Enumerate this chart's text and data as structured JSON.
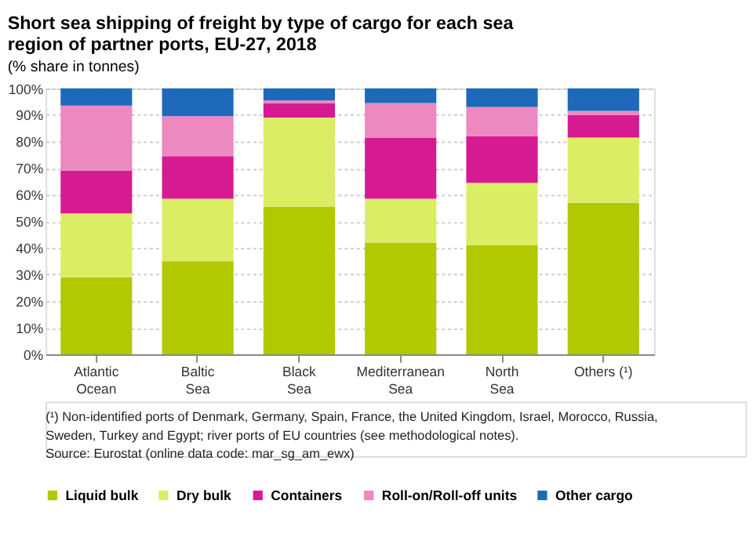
{
  "chart_data": {
    "type": "bar",
    "stacked": true,
    "title": "Short sea shipping of freight by type of cargo for each sea region of partner ports, EU-27, 2018",
    "subtitle": "(% share in tonnes)",
    "categories": [
      "Atlantic Ocean",
      "Baltic Sea",
      "Black Sea",
      "Mediterranean Sea",
      "North Sea",
      "Others (¹)"
    ],
    "series": [
      {
        "name": "Liquid bulk",
        "color": "#b2c800",
        "values": [
          29,
          35,
          55.5,
          42,
          41,
          57
        ]
      },
      {
        "name": "Dry bulk",
        "color": "#dbed63",
        "values": [
          24,
          23.5,
          33.5,
          16.5,
          23.5,
          24.5
        ]
      },
      {
        "name": "Containers",
        "color": "#d61a92",
        "values": [
          16,
          16,
          5.5,
          23,
          17.5,
          8.5
        ]
      },
      {
        "name": "Roll-on/Roll-off units",
        "color": "#eb89c0",
        "values": [
          24.5,
          15,
          1,
          13,
          11,
          1.5
        ]
      },
      {
        "name": "Other cargo",
        "color": "#1e69b9",
        "values": [
          6.5,
          10.5,
          4.5,
          5.5,
          7,
          8.5
        ]
      }
    ],
    "ylim": [
      0,
      100
    ],
    "yticks": [
      {
        "value": 0,
        "label": "0%"
      },
      {
        "value": 10,
        "label": "10%"
      },
      {
        "value": 20,
        "label": "20%"
      },
      {
        "value": 30,
        "label": "30%"
      },
      {
        "value": 40,
        "label": "40%"
      },
      {
        "value": 50,
        "label": "50%"
      },
      {
        "value": 60,
        "label": "60%"
      },
      {
        "value": 70,
        "label": "70%"
      },
      {
        "value": 80,
        "label": "80%"
      },
      {
        "value": 90,
        "label": "90%"
      },
      {
        "value": 100,
        "label": "100%"
      }
    ],
    "grid": "y",
    "legend": "bottom",
    "annotations": [
      "(¹) Non-identified ports of Denmark, Germany, Spain, France, the United Kingdom, Israel, Morocco, Russia, Sweden, Turkey and Egypt; river ports of EU countries (see methodological notes).",
      "Source: Eurostat (online data code: mar_sg_am_ewx)"
    ]
  }
}
